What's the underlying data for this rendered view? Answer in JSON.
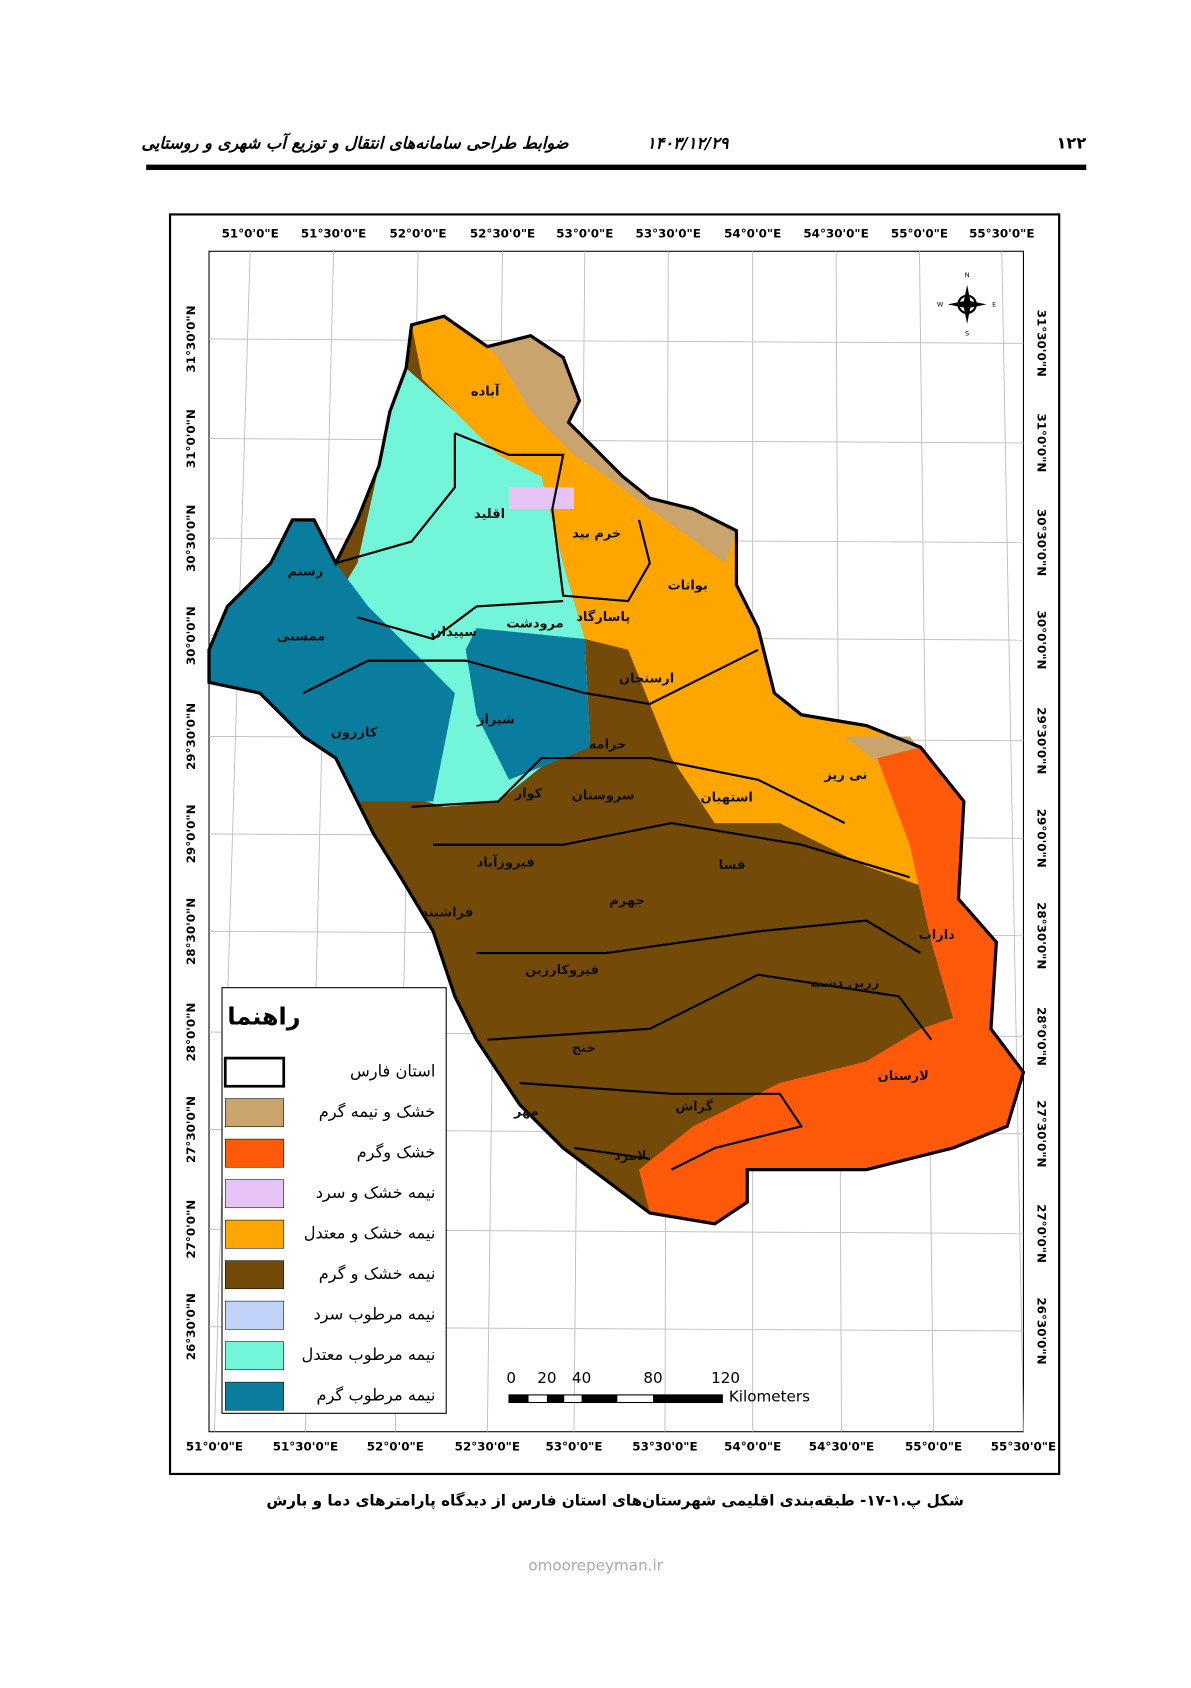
{
  "header": {
    "page_number": "۱۲۲",
    "date": "۱۴۰۳/۱۲/۲۹",
    "title": "ضوابط طراحی سامانه‌های انتقال و توزیع آب شهری و روستایی"
  },
  "map": {
    "lon_labels_top": [
      "51°0'0\"E",
      "51°30'0\"E",
      "52°0'0\"E",
      "52°30'0\"E",
      "53°0'0\"E",
      "53°30'0\"E",
      "54°0'0\"E",
      "54°30'0\"E",
      "55°0'0\"E",
      "55°30'0\"E"
    ],
    "lon_labels_bottom": [
      "51°0'0\"E",
      "51°30'0\"E",
      "52°0'0\"E",
      "52°30'0\"E",
      "53°0'0\"E",
      "53°30'0\"E",
      "54°0'0\"E",
      "54°30'0\"E",
      "55°0'0\"E",
      "55°30'0\"E"
    ],
    "lat_labels_left": [
      "31°30'0\"N",
      "31°0'0\"N",
      "30°30'0\"N",
      "30°0'0\"N",
      "29°30'0\"N",
      "29°0'0\"N",
      "28°30'0\"N",
      "28°0'0\"N",
      "27°30'0\"N",
      "27°0'0\"N",
      "26°30'0\"N"
    ],
    "lat_labels_right": [
      "31°30'0\"N",
      "31°0'0\"N",
      "30°30'0\"N",
      "30°0'0\"N",
      "29°30'0\"N",
      "29°0'0\"N",
      "28°30'0\"N",
      "28°0'0\"N",
      "27°30'0\"N",
      "27°0'0\"N",
      "26°30'0\"N"
    ],
    "compass": [
      "N",
      "E",
      "S",
      "W"
    ],
    "counties": [
      "آباده",
      "اقلید",
      "خرم بید",
      "بوانات",
      "رستم",
      "ممسنی",
      "سپیدان",
      "مرودشت",
      "پاسارگاد",
      "ارسنجان",
      "کازرون",
      "شیراز",
      "خرامه",
      "نی ریز",
      "کوار",
      "سروستان",
      "استهبان",
      "فیروزآباد",
      "فسا",
      "جهرم",
      "فراشبند",
      "داراب",
      "قیروکارزین",
      "زرین دشت",
      "خنج",
      "لارستان",
      "گراش",
      "مهر",
      "لامرد"
    ],
    "legend": {
      "title": "راهنما",
      "items": [
        {
          "label": "استان فارس",
          "color": "#ffffff"
        },
        {
          "label": "خشک و نیمه گرم",
          "color": "#c9a46c"
        },
        {
          "label": "خشک وگرم",
          "color": "#ff5a0a"
        },
        {
          "label": "نیمه خشک و سرد",
          "color": "#e6c3f5"
        },
        {
          "label": "نیمه خشک و معتدل",
          "color": "#ffa500"
        },
        {
          "label": "نیمه خشک و گرم",
          "color": "#734a08"
        },
        {
          "label": "نیمه مرطوب سرد",
          "color": "#c0d2f7"
        },
        {
          "label": "نیمه مرطوب معتدل",
          "color": "#73f5da"
        },
        {
          "label": "نیمه مرطوب گرم",
          "color": "#0a7d9e"
        }
      ]
    },
    "scale_bar": {
      "labels": [
        "0",
        "20",
        "40",
        "80",
        "120"
      ],
      "unit": "Kilometers"
    }
  },
  "caption": "شکل پ.۱-۱۷- طبقه‌بندی اقلیمی شهرستان‌های استان فارس از دیدگاه پارامترهای دما و بارش",
  "watermark": "omoorepeyman.ir"
}
